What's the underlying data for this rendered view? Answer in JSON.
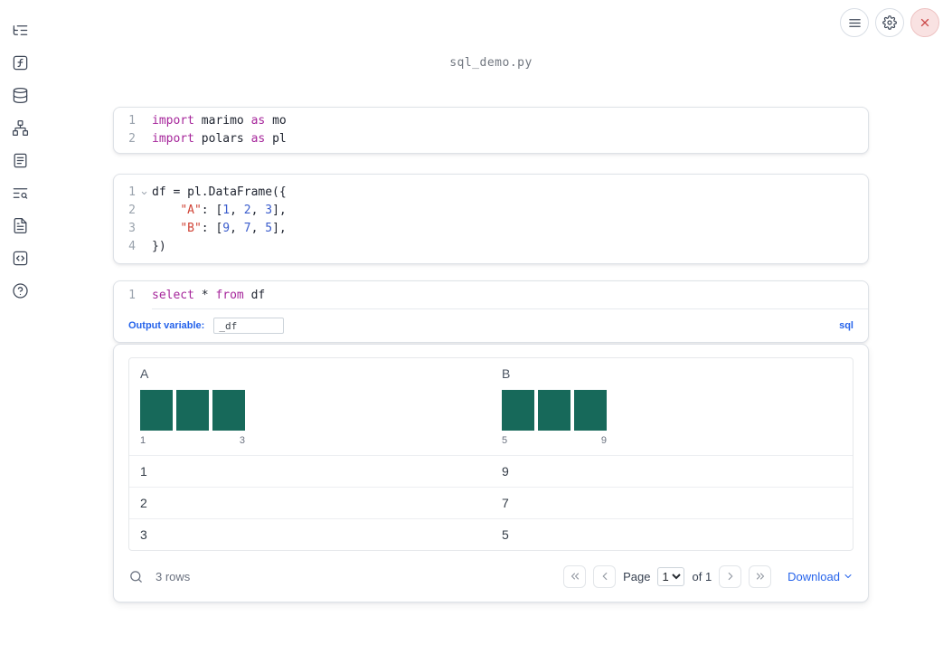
{
  "topbar": {
    "filename": "sql_demo.py",
    "icons": [
      "hamburger-icon",
      "gear-icon",
      "close-icon"
    ]
  },
  "sidebar": {
    "items": [
      {
        "icon": "file-tree-icon"
      },
      {
        "icon": "variables-icon"
      },
      {
        "icon": "datasources-icon"
      },
      {
        "icon": "dependency-graph-icon"
      },
      {
        "icon": "notebook-icon"
      },
      {
        "icon": "logs-search-icon"
      },
      {
        "icon": "documentation-icon"
      },
      {
        "icon": "snippets-icon"
      },
      {
        "icon": "help-icon"
      }
    ]
  },
  "colors": {
    "accent_blue": "#2563eb",
    "keyword": "#a6269b",
    "string": "#d04437",
    "number": "#3a5ccc",
    "histogram_bar": "#17695a",
    "close_red": "#cc4b4b"
  },
  "cells": [
    {
      "lines": [
        {
          "num": "1",
          "tokens": [
            {
              "t": "import"
            },
            {
              "t": " marimo "
            },
            {
              "t": "as"
            },
            {
              "t": " mo"
            }
          ]
        },
        {
          "num": "2",
          "tokens": [
            {
              "t": "import"
            },
            {
              "t": " polars "
            },
            {
              "t": "as"
            },
            {
              "t": " pl"
            }
          ]
        }
      ]
    },
    {
      "lines": [
        {
          "num": "1",
          "tokens": [
            {
              "t": "df = pl.DataFrame({"
            }
          ]
        },
        {
          "num": "2",
          "tokens": [
            {
              "t": "    "
            },
            {
              "t": "\"A\""
            },
            {
              "t": ": ["
            },
            {
              "t": "1"
            },
            {
              "t": ", "
            },
            {
              "t": "2"
            },
            {
              "t": ", "
            },
            {
              "t": "3"
            },
            {
              "t": "],"
            }
          ]
        },
        {
          "num": "3",
          "tokens": [
            {
              "t": "    "
            },
            {
              "t": "\"B\""
            },
            {
              "t": ": ["
            },
            {
              "t": "9"
            },
            {
              "t": ", "
            },
            {
              "t": "7"
            },
            {
              "t": ", "
            },
            {
              "t": "5"
            },
            {
              "t": "],"
            }
          ]
        },
        {
          "num": "4",
          "tokens": [
            {
              "t": "})"
            }
          ]
        }
      ]
    },
    {
      "lines": [
        {
          "num": "1",
          "tokens": [
            {
              "t": "select"
            },
            {
              "t": " * "
            },
            {
              "t": "from"
            },
            {
              "t": " df"
            }
          ]
        }
      ],
      "footer": {
        "output_variable_label": "Output variable:",
        "output_variable_value": "_df",
        "language": "sql"
      }
    }
  ],
  "table": {
    "columns": [
      {
        "name": "A",
        "hist": {
          "bars": [
            1,
            1,
            1
          ],
          "labels": [
            "1",
            "3"
          ]
        }
      },
      {
        "name": "B",
        "hist": {
          "bars": [
            1,
            1,
            1
          ],
          "labels": [
            "5",
            "9"
          ]
        }
      }
    ],
    "rows": [
      [
        "1",
        "9"
      ],
      [
        "2",
        "7"
      ],
      [
        "3",
        "5"
      ]
    ],
    "footer": {
      "row_count": "3 rows",
      "page_label": "Page",
      "page_value": "1",
      "of_label": "of 1",
      "download_label": "Download"
    }
  }
}
